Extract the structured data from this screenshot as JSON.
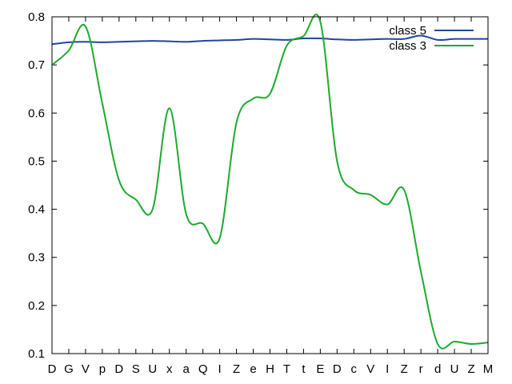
{
  "chart_data": {
    "type": "line",
    "title": "",
    "xlabel": "",
    "ylabel": "",
    "categories": [
      "D",
      "G",
      "V",
      "p",
      "D",
      "S",
      "U",
      "x",
      "a",
      "Q",
      "I",
      "Z",
      "e",
      "H",
      "T",
      "t",
      "E",
      "D",
      "c",
      "V",
      "I",
      "Z",
      "r",
      "d",
      "U",
      "Z",
      "M"
    ],
    "ylim": [
      0.1,
      0.8
    ],
    "yticks": [
      "0.1",
      "0.2",
      "0.3",
      "0.4",
      "0.5",
      "0.6",
      "0.7",
      "0.8"
    ],
    "legend_position": "top-right",
    "grid": false,
    "series": [
      {
        "name": "class 5",
        "color": "#2045a0",
        "values": [
          0.743,
          0.747,
          0.748,
          0.747,
          0.748,
          0.749,
          0.75,
          0.749,
          0.748,
          0.75,
          0.751,
          0.752,
          0.754,
          0.753,
          0.752,
          0.755,
          0.755,
          0.753,
          0.752,
          0.753,
          0.754,
          0.754,
          0.761,
          0.752,
          0.754,
          0.754,
          0.754
        ]
      },
      {
        "name": "class 3",
        "color": "#1daa2d",
        "values": [
          0.7,
          0.73,
          0.78,
          0.62,
          0.46,
          0.42,
          0.4,
          0.61,
          0.39,
          0.37,
          0.34,
          0.58,
          0.63,
          0.64,
          0.74,
          0.76,
          0.79,
          0.5,
          0.44,
          0.43,
          0.41,
          0.44,
          0.27,
          0.12,
          0.125,
          0.12,
          0.123
        ]
      }
    ]
  }
}
